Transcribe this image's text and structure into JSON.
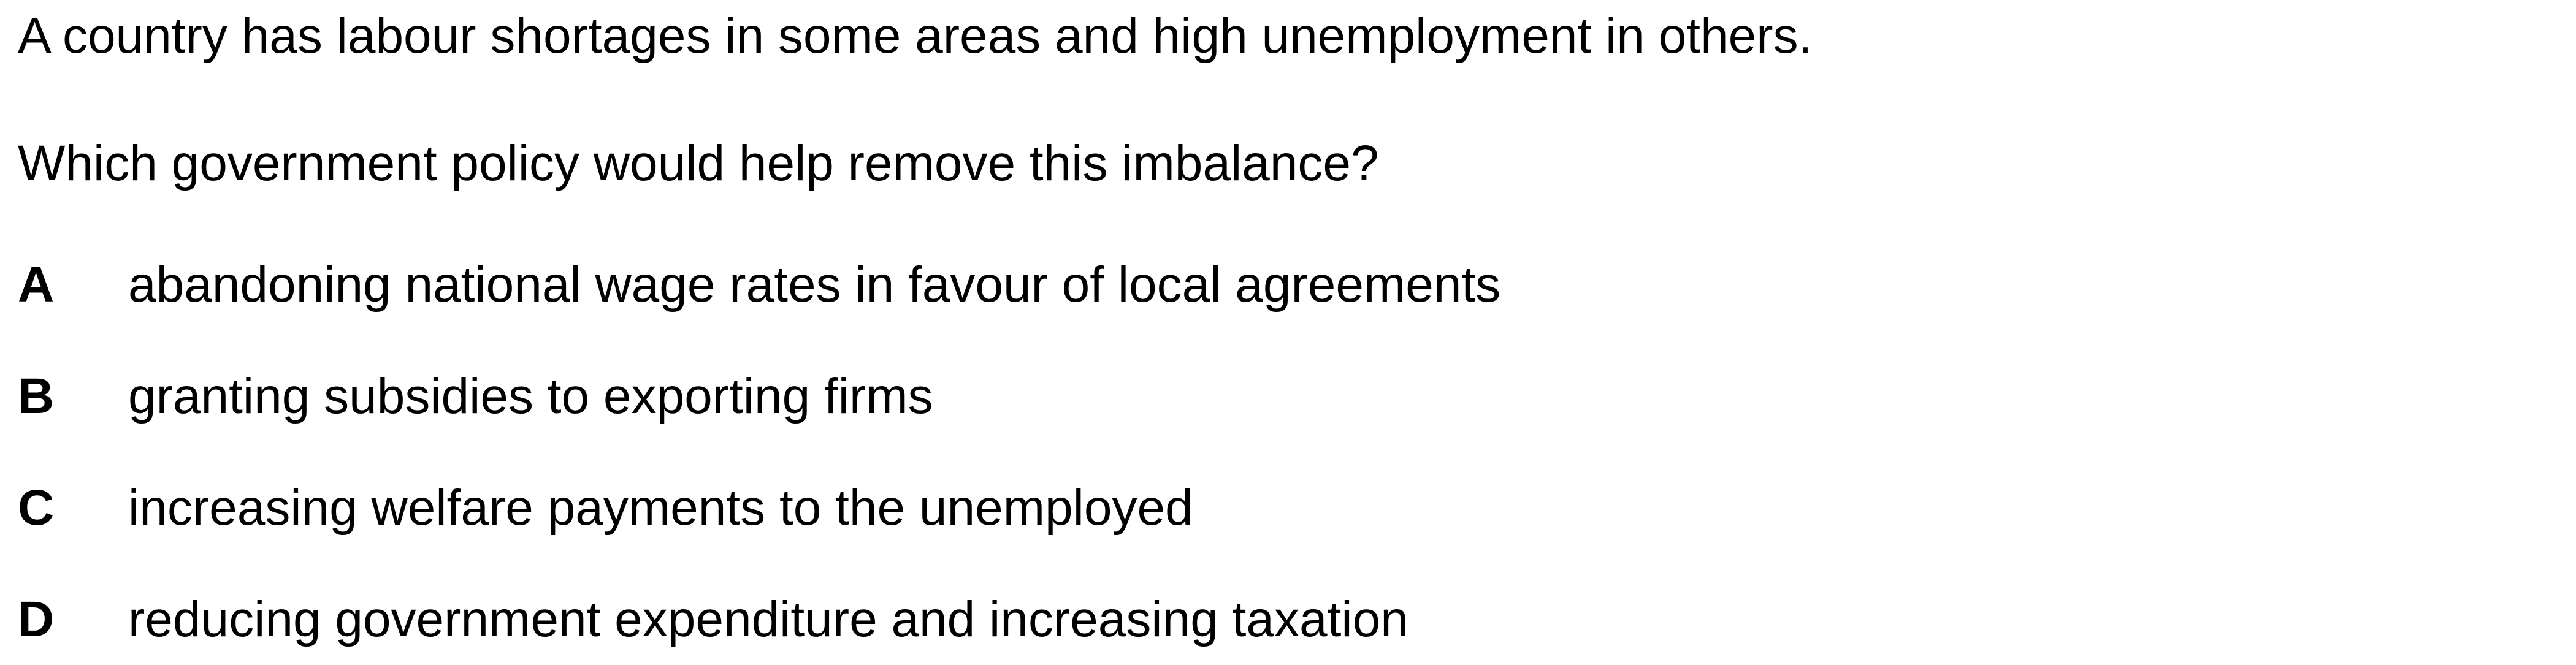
{
  "question": {
    "stem_line_1": "A country has labour shortages in some areas and high unemployment in others.",
    "stem_line_2": "Which government policy would help remove this imbalance?",
    "options": [
      {
        "letter": "A",
        "text": "abandoning national wage rates in favour of local agreements"
      },
      {
        "letter": "B",
        "text": "granting subsidies to exporting firms"
      },
      {
        "letter": "C",
        "text": "increasing welfare payments to the unemployed"
      },
      {
        "letter": "D",
        "text": "reducing government expenditure and increasing taxation"
      }
    ]
  }
}
